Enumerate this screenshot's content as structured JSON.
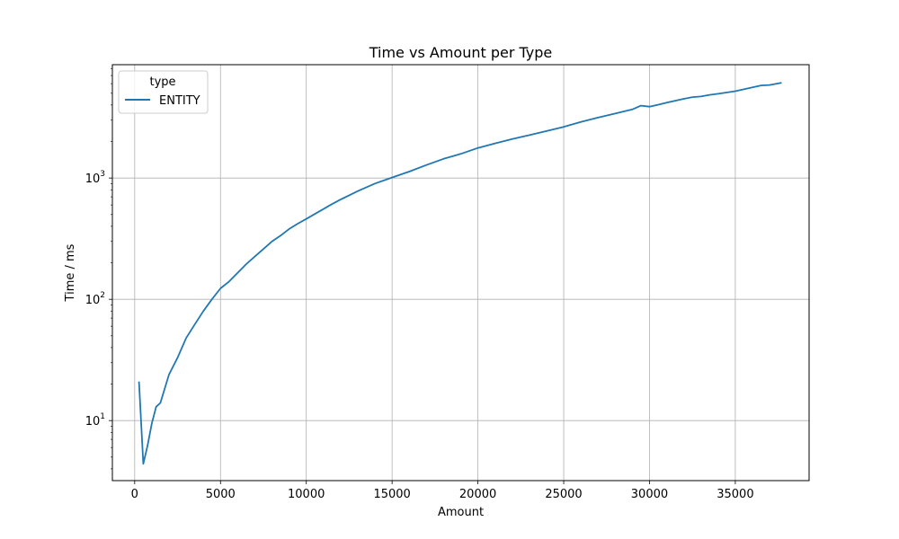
{
  "chart_data": {
    "type": "line",
    "title": "Time vs Amount per Type",
    "xlabel": "Amount",
    "ylabel": "Time / ms",
    "xlim": [
      -1300,
      39300
    ],
    "ylim": [
      3.2,
      8600
    ],
    "yscale": "log",
    "grid": true,
    "legend": {
      "title": "type",
      "position": "top-left"
    },
    "x_ticks": [
      0,
      5000,
      10000,
      15000,
      20000,
      25000,
      30000,
      35000
    ],
    "x_tick_labels": [
      "0",
      "5000",
      "10000",
      "15000",
      "20000",
      "25000",
      "30000",
      "35000"
    ],
    "y_ticks": [
      10,
      100,
      1000
    ],
    "y_tick_labels": [
      {
        "base": "10",
        "exp": "1"
      },
      {
        "base": "10",
        "exp": "2"
      },
      {
        "base": "10",
        "exp": "3"
      }
    ],
    "series": [
      {
        "name": "ENTITY",
        "color": "#1f77b4",
        "x": [
          250,
          500,
          750,
          1000,
          1250,
          1500,
          2000,
          2500,
          3000,
          3500,
          4000,
          4500,
          5000,
          5500,
          6000,
          6500,
          7000,
          7500,
          8000,
          8500,
          9000,
          9500,
          10000,
          10500,
          11000,
          11500,
          12000,
          12500,
          13000,
          14000,
          15000,
          16000,
          17000,
          18000,
          19000,
          20000,
          21000,
          22000,
          23000,
          24000,
          25000,
          26000,
          27000,
          28000,
          29000,
          29500,
          30000,
          30500,
          31000,
          32000,
          32500,
          33000,
          33500,
          34000,
          35000,
          36000,
          36500,
          37000,
          37700
        ],
        "y": [
          21,
          4.4,
          6.2,
          9.5,
          13,
          14,
          24,
          33,
          48,
          62,
          80,
          100,
          123,
          140,
          165,
          195,
          225,
          260,
          300,
          335,
          380,
          420,
          460,
          505,
          555,
          610,
          665,
          720,
          780,
          900,
          1010,
          1130,
          1280,
          1440,
          1580,
          1770,
          1930,
          2100,
          2260,
          2440,
          2640,
          2900,
          3150,
          3400,
          3680,
          3950,
          3880,
          4020,
          4180,
          4500,
          4650,
          4700,
          4850,
          4950,
          5200,
          5600,
          5800,
          5850,
          6100
        ]
      }
    ]
  }
}
